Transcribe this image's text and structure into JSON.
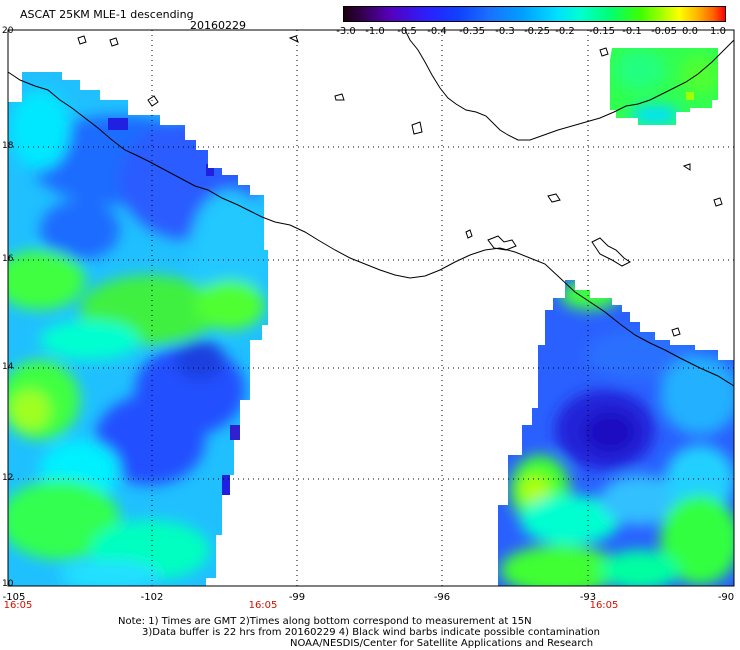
{
  "header": {
    "title": "ASCAT 25KM MLE-1 descending",
    "date": "20160229"
  },
  "colorbar": {
    "labels": [
      "-3.0",
      "-1.0",
      "-0.5",
      "-0.4",
      "-0.35",
      "-0.3",
      "-0.25",
      "-0.2",
      "-0.15",
      "-0.1",
      "-0.05",
      "0.0",
      "1.0"
    ]
  },
  "axes": {
    "lat_labels": [
      "20",
      "18",
      "16",
      "14",
      "12",
      "10"
    ],
    "lon_labels": [
      "-105",
      "-102",
      "-99",
      "-96",
      "-93",
      "-90"
    ],
    "time_labels": [
      "16:05",
      "16:05",
      "16:05"
    ]
  },
  "notes": {
    "line1": "Note: 1) Times are GMT 2)Times along bottom correspond to measurement at 15N",
    "line2": "3)Data buffer is 22 hrs from 20160229 4) Black wind barbs indicate possible contamination",
    "line3": "NOAA/NESDIS/Center for Satellite Applications and Research"
  },
  "colors": {
    "deep_blue": "#2020e0",
    "blue": "#2a60ff",
    "light_blue": "#20b0ff",
    "cyan": "#00e0ff",
    "aqua_green": "#00ffc0",
    "green": "#30ff30",
    "yellow_green": "#b0ff00",
    "coast": "#000000",
    "time_text": "#d01000"
  }
}
